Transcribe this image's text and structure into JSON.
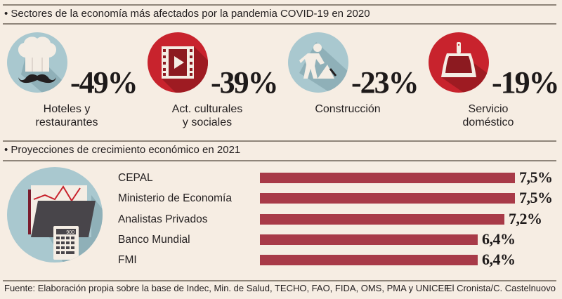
{
  "section1": {
    "title": "• Sectores de la economía más afectados por la pandemia COVID-19 en 2020",
    "sectors": [
      {
        "icon": "chef-hat-mustache-icon",
        "value": "-49%",
        "label_line1": "Hoteles y",
        "label_line2": "restaurantes",
        "circle_color": "#a9c8cf"
      },
      {
        "icon": "film-play-icon",
        "value": "-39%",
        "label_line1": "Act. culturales",
        "label_line2": "y sociales",
        "circle_color": "#c8232d"
      },
      {
        "icon": "construction-worker-icon",
        "value": "-23%",
        "label_line1": "Construcción",
        "label_line2": "",
        "circle_color": "#a9c8cf"
      },
      {
        "icon": "dustpan-icon",
        "value": "-19%",
        "label_line1": "Servicio",
        "label_line2": "doméstico",
        "circle_color": "#c8232d"
      }
    ]
  },
  "section2": {
    "title": "• Proyecciones de crecimiento económico en 2021",
    "icon": "folder-chart-calculator-icon",
    "calculator_display": "900"
  },
  "chart_data": {
    "type": "bar",
    "orientation": "horizontal",
    "title": "Proyecciones de crecimiento económico en 2021",
    "categories": [
      "CEPAL",
      "Ministerio de Economía",
      "Analistas Privados",
      "Banco Mundial",
      "FMI"
    ],
    "values": [
      7.5,
      7.5,
      7.2,
      6.4,
      6.4
    ],
    "value_labels": [
      "7,5%",
      "7,5%",
      "7,2%",
      "6,4%",
      "6,4%"
    ],
    "unit": "%",
    "xlabel": "",
    "ylabel": "",
    "xlim": [
      0,
      7.5
    ],
    "grid": false,
    "bar_color": "#a83a48"
  },
  "footer": {
    "source": "Fuente: Elaboración propia sobre la base de Indec, Min. de Salud, TECHO, FAO, FIDA, OMS, PMA y UNICEF",
    "credit": "El Cronista/C. Castelnuovo"
  }
}
